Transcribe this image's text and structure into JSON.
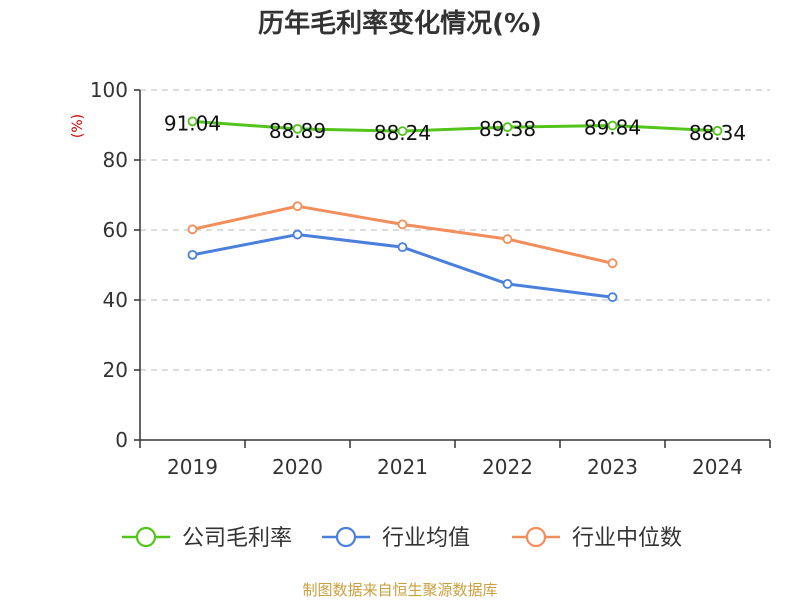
{
  "chart_data": {
    "type": "line",
    "title": "历年毛利率变化情况(%)",
    "xlabel": "",
    "ylabel": "(%)",
    "categories": [
      "2019",
      "2020",
      "2021",
      "2022",
      "2023",
      "2024"
    ],
    "ylim": [
      0,
      100
    ],
    "yticks": [
      0,
      20,
      40,
      60,
      80,
      100
    ],
    "grid": true,
    "legend_position": "bottom",
    "series": [
      {
        "name": "公司毛利率",
        "color": "#52c41a",
        "values": [
          91.04,
          88.89,
          88.24,
          89.38,
          89.84,
          88.34
        ],
        "show_labels": true
      },
      {
        "name": "行业均值",
        "color": "#4a7fdb",
        "values": [
          52.9,
          58.7,
          55.1,
          44.6,
          40.8,
          null
        ],
        "show_labels": false
      },
      {
        "name": "行业中位数",
        "color": "#f28e5b",
        "values": [
          60.2,
          66.8,
          61.6,
          57.4,
          50.5,
          null
        ],
        "show_labels": false
      }
    ]
  },
  "source": "制图数据来自恒生聚源数据库"
}
